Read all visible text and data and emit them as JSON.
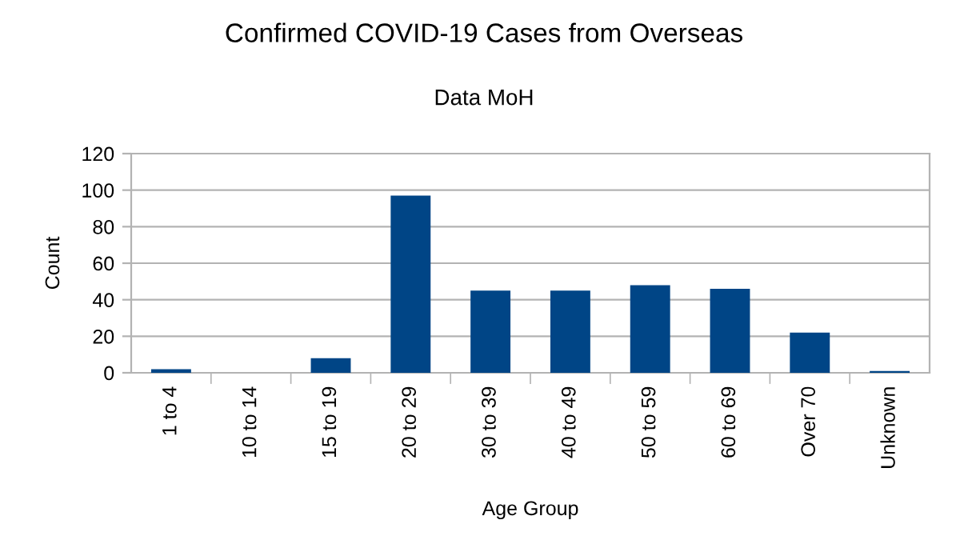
{
  "chart_data": {
    "type": "bar",
    "title": "Confirmed COVID-19 Cases from Overseas",
    "subtitle": "Data MoH",
    "xlabel": "Age Group",
    "ylabel": "Count",
    "categories": [
      "1 to 4",
      "10 to 14",
      "15 to 19",
      "20 to 29",
      "30 to 39",
      "40 to 49",
      "50 to 59",
      "60 to 69",
      "Over 70",
      "Unknown"
    ],
    "values": [
      2,
      0,
      8,
      97,
      45,
      45,
      48,
      46,
      22,
      1
    ],
    "color": "#004586",
    "ylim": [
      0,
      120
    ],
    "yticks": [
      0,
      20,
      40,
      60,
      80,
      100,
      120
    ],
    "grid": "y"
  }
}
